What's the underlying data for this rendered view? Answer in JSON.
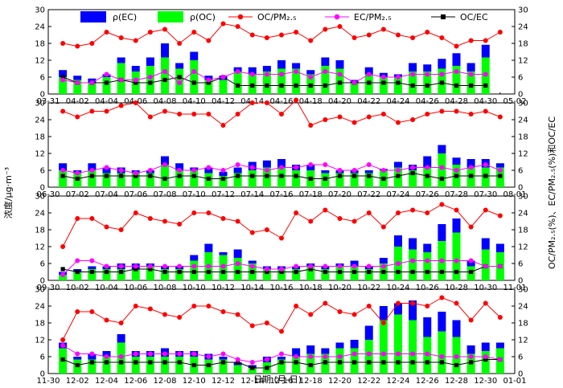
{
  "chart_data": {
    "type": "bar+line",
    "ylabel_left": "浓度/μg·m⁻³",
    "ylabel_right": "OC/PM₂.₅(%)、EC/PM₂.₅(%)和OC/EC",
    "xlabel": "日期 (月-日)",
    "legend": [
      {
        "name": "ρ(EC)",
        "marker": "bar",
        "color": "#0000ff"
      },
      {
        "name": "ρ(OC)",
        "marker": "bar",
        "color": "#00ff00"
      },
      {
        "name": "OC/PM₂.₅",
        "marker": "line-circle",
        "color": "#ff0000"
      },
      {
        "name": "EC/PM₂.₅",
        "marker": "line-circle",
        "color": "#ff00ff"
      },
      {
        "name": "OC/EC",
        "marker": "line-square",
        "color": "#000000"
      }
    ],
    "colors": {
      "ec": "#0000ff",
      "oc": "#00ff00",
      "ocpm": "#ff0000",
      "ecpm": "#ff00ff",
      "ocec": "#000000"
    },
    "ylim_left": [
      0,
      30
    ],
    "ylim_right": [
      0,
      30
    ],
    "yticks_left": [
      "0",
      "6",
      "12",
      "18",
      "24",
      "30"
    ],
    "yticks_right": [
      "0",
      "6",
      "12",
      "18",
      "24",
      "30"
    ],
    "panels": [
      {
        "x_start": 1,
        "x_end": 33,
        "xtick_pos": [
          1,
          3,
          5,
          7,
          9,
          11,
          13,
          15,
          17,
          19,
          21,
          23,
          25,
          27,
          29,
          31,
          33
        ],
        "xtick_labels": [
          "03-31",
          "04-02",
          "04-04",
          "04-06",
          "04-08",
          "04-10",
          "04-12",
          "04-14",
          "04-16",
          "04-18",
          "04-20",
          "04-22",
          "04-24",
          "04-26",
          "04-28",
          "04-30",
          "05-02"
        ],
        "x": [
          2,
          3,
          4,
          5,
          6,
          7,
          8,
          9,
          10,
          11,
          12,
          13,
          14,
          15,
          16,
          17,
          18,
          19,
          20,
          21,
          22,
          23,
          24,
          25,
          26,
          27,
          28,
          29,
          30,
          31
        ],
        "oc": [
          6,
          5,
          4,
          6,
          11,
          8,
          10,
          13,
          9,
          12,
          5,
          5,
          8,
          7,
          8,
          9,
          9,
          7,
          10,
          9,
          4,
          7,
          6,
          6,
          8,
          8,
          9,
          10,
          8,
          13
        ],
        "total": [
          8.5,
          6.5,
          5.5,
          7,
          13,
          10,
          13,
          18,
          11,
          15,
          6.5,
          6.5,
          9.5,
          9.5,
          10,
          12,
          11,
          8.5,
          13,
          12,
          5,
          9.5,
          7.5,
          7,
          11,
          10.5,
          12.5,
          14.5,
          11,
          17.5
        ],
        "oc_pm": [
          18,
          17,
          18,
          22,
          20,
          19,
          22,
          23,
          18,
          22,
          19,
          25,
          24,
          21,
          20,
          21,
          22,
          19,
          23,
          24,
          20,
          21,
          23,
          21,
          20,
          22,
          20,
          17,
          19,
          19,
          22
        ],
        "oc_pm_x": [
          2,
          3,
          4,
          5,
          6,
          7,
          8,
          9,
          10,
          11,
          12,
          13,
          14,
          15,
          16,
          17,
          18,
          19,
          20,
          21,
          22,
          23,
          24,
          25,
          26,
          27,
          28,
          29,
          30,
          31,
          32
        ],
        "ec_pm": [
          5,
          4,
          4,
          7,
          5,
          5,
          6,
          8,
          4,
          8,
          5,
          6,
          8,
          7,
          7,
          7,
          8,
          6,
          8,
          7,
          4,
          7,
          6,
          6,
          7,
          7,
          7,
          8,
          7,
          7
        ],
        "oc_ec": [
          6,
          4,
          4,
          4,
          5,
          4,
          4,
          5,
          6,
          4,
          4,
          6,
          3,
          3,
          3,
          3,
          3,
          3,
          3,
          4,
          4,
          4,
          4,
          4,
          3,
          3,
          4,
          3,
          3,
          3
        ]
      },
      {
        "x_start": 1,
        "x_end": 33,
        "xtick_pos": [
          1,
          3,
          5,
          7,
          9,
          11,
          13,
          15,
          17,
          19,
          21,
          23,
          25,
          27,
          29,
          31,
          33
        ],
        "xtick_labels": [
          "06-30",
          "07-02",
          "07-04",
          "07-06",
          "07-08",
          "07-10",
          "07-12",
          "07-14",
          "07-16",
          "07-18",
          "07-20",
          "07-22",
          "07-24",
          "07-26",
          "07-28",
          "07-30",
          "08-01"
        ],
        "x": [
          2,
          3,
          4,
          5,
          6,
          7,
          8,
          9,
          10,
          11,
          12,
          13,
          14,
          15,
          16,
          17,
          18,
          19,
          20,
          21,
          22,
          23,
          24,
          25,
          26,
          27,
          28,
          29,
          30,
          31,
          32
        ],
        "oc": [
          6,
          5,
          6,
          5,
          5,
          5,
          5,
          8,
          6,
          6,
          5,
          4,
          5,
          6,
          7,
          7,
          6,
          6,
          5,
          5,
          5,
          5,
          6,
          7,
          6,
          7,
          12,
          8,
          7,
          7,
          7
        ],
        "total": [
          8.5,
          6,
          8.5,
          7,
          7,
          6,
          6,
          11,
          8.5,
          7,
          7,
          5.5,
          7,
          9,
          9.5,
          10,
          8,
          8,
          6,
          6,
          6,
          6,
          6.5,
          9,
          8,
          11,
          15,
          10.5,
          10,
          10,
          8.5
        ],
        "oc_pm": [
          27,
          25,
          27,
          27,
          29,
          30,
          25,
          27,
          26,
          26,
          26,
          22,
          26,
          30,
          30,
          26,
          31,
          22,
          24,
          25,
          23,
          25,
          26,
          23,
          24,
          26,
          27,
          27,
          26,
          27,
          25
        ],
        "oc_pm_x": [
          2,
          3,
          4,
          5,
          6,
          7,
          8,
          9,
          10,
          11,
          12,
          13,
          14,
          15,
          16,
          17,
          18,
          19,
          20,
          21,
          22,
          23,
          24,
          25,
          26,
          27,
          28,
          29,
          30,
          31,
          32
        ],
        "ec_pm": [
          6,
          5,
          6,
          7,
          6,
          5,
          6,
          8,
          6,
          6,
          7,
          6,
          8,
          7,
          6,
          7,
          7,
          8,
          8,
          6,
          6,
          8,
          6,
          6,
          7,
          7,
          7,
          6,
          7,
          8,
          6
        ],
        "oc_ec": [
          4,
          3,
          4,
          4,
          4,
          4,
          4,
          3,
          4,
          4,
          3,
          3,
          4,
          4,
          4,
          4,
          4,
          3,
          3,
          4,
          4,
          4,
          3,
          4,
          5,
          4,
          3,
          4,
          4,
          4,
          4
        ]
      },
      {
        "x_start": 1,
        "x_end": 33,
        "xtick_pos": [
          1,
          3,
          5,
          7,
          9,
          11,
          13,
          15,
          17,
          19,
          21,
          23,
          25,
          27,
          29,
          31,
          33
        ],
        "xtick_labels": [
          "09-30",
          "10-02",
          "10-04",
          "10-06",
          "10-08",
          "10-10",
          "10-12",
          "10-14",
          "10-16",
          "10-18",
          "10-20",
          "10-22",
          "10-24",
          "10-26",
          "10-28",
          "10-30",
          "11-01"
        ],
        "x": [
          2,
          3,
          4,
          5,
          6,
          7,
          8,
          9,
          10,
          11,
          12,
          13,
          14,
          15,
          16,
          17,
          18,
          19,
          20,
          21,
          22,
          23,
          24,
          25,
          26,
          27,
          28,
          29,
          30,
          31,
          32
        ],
        "oc": [
          2,
          3,
          4,
          4,
          4,
          4,
          5,
          4,
          4,
          7,
          10,
          9,
          8,
          6,
          4,
          4,
          4,
          5,
          4,
          5,
          5,
          4,
          6,
          12,
          11,
          10,
          14,
          17,
          5,
          11,
          10
        ],
        "total": [
          3,
          4,
          5,
          5,
          6,
          6,
          6,
          5,
          5,
          9,
          13,
          10,
          11,
          7,
          5,
          5,
          5,
          6,
          5,
          6,
          7,
          5,
          8,
          16,
          15,
          13,
          20,
          22,
          7,
          15,
          13
        ],
        "oc_pm": [
          12,
          22,
          22,
          19,
          18,
          24,
          22,
          21,
          20,
          24,
          24,
          22,
          21,
          17,
          18,
          15,
          24,
          21,
          25,
          22,
          21,
          24,
          19,
          24,
          25,
          24,
          27,
          25,
          19,
          25,
          23
        ],
        "oc_pm_x": [
          2,
          3,
          4,
          5,
          6,
          7,
          8,
          9,
          10,
          11,
          12,
          13,
          14,
          15,
          16,
          17,
          18,
          19,
          20,
          21,
          22,
          23,
          24,
          25,
          26,
          27,
          28,
          29,
          30,
          31,
          32
        ],
        "ec_pm": [
          2,
          7,
          7,
          5,
          5,
          5,
          5,
          5,
          5,
          5,
          5,
          5,
          6,
          5,
          4,
          4,
          5,
          5,
          5,
          5,
          5,
          5,
          5,
          6,
          7,
          7,
          7,
          7,
          7,
          5,
          5
        ],
        "oc_ec": [
          4,
          3,
          3,
          3,
          3,
          4,
          4,
          3,
          3,
          3,
          3,
          3,
          3,
          3,
          3,
          3,
          3,
          4,
          3,
          3,
          3,
          3,
          3,
          3,
          3,
          3,
          3,
          3,
          3,
          5,
          5
        ]
      },
      {
        "x_start": 1,
        "x_end": 33,
        "xtick_pos": [
          1,
          3,
          5,
          7,
          9,
          11,
          13,
          15,
          17,
          19,
          21,
          23,
          25,
          27,
          29,
          31,
          33
        ],
        "xtick_labels": [
          "11-30",
          "12-02",
          "12-04",
          "12-06",
          "12-08",
          "12-10",
          "12-12",
          "12-14",
          "12-16",
          "12-18",
          "12-20",
          "12-22",
          "12-24",
          "12-26",
          "12-28",
          "12-30",
          "01-01"
        ],
        "x": [
          2,
          3,
          4,
          5,
          6,
          7,
          8,
          9,
          10,
          11,
          12,
          13,
          14,
          15,
          16,
          17,
          18,
          19,
          20,
          21,
          22,
          23,
          24,
          25,
          26,
          27,
          28,
          29,
          30,
          31,
          32
        ],
        "oc": [
          9,
          5,
          5,
          6,
          11,
          6,
          6,
          6,
          6,
          6,
          5,
          5,
          3,
          2,
          4,
          5,
          6,
          7,
          7,
          9,
          9,
          12,
          19,
          21,
          19,
          13,
          15,
          13,
          7,
          8,
          9
        ],
        "total": [
          11,
          6,
          7,
          8,
          14,
          8,
          8,
          9,
          8,
          8,
          7,
          6,
          4,
          3,
          6,
          6,
          9,
          10,
          9,
          11,
          12,
          17,
          24,
          25,
          26,
          20,
          22,
          19,
          10,
          11,
          11
        ],
        "oc_pm": [
          12,
          22,
          22,
          19,
          18,
          24,
          23,
          21,
          20,
          24,
          24,
          22,
          21,
          17,
          18,
          15,
          24,
          21,
          25,
          22,
          21,
          24,
          18,
          25,
          25,
          24,
          27,
          25,
          19,
          25,
          20
        ],
        "oc_pm_x": [
          2,
          3,
          4,
          5,
          6,
          7,
          8,
          9,
          10,
          11,
          12,
          13,
          14,
          15,
          16,
          17,
          18,
          19,
          20,
          21,
          22,
          23,
          24,
          25,
          26,
          27,
          28,
          29,
          30,
          31,
          32
        ],
        "ec_pm": [
          10,
          7,
          7,
          6,
          6,
          7,
          7,
          7,
          7,
          7,
          6,
          7,
          5,
          4,
          5,
          7,
          6,
          6,
          6,
          6,
          7,
          7,
          7,
          7,
          7,
          7,
          6,
          6,
          6,
          6,
          5
        ],
        "oc_ec": [
          5,
          3,
          4,
          4,
          4,
          4,
          4,
          4,
          4,
          3,
          3,
          4,
          4,
          2,
          2,
          4,
          4,
          3,
          4,
          4,
          4,
          4,
          4,
          4,
          4,
          4,
          4,
          3,
          4,
          5,
          5
        ]
      }
    ]
  }
}
